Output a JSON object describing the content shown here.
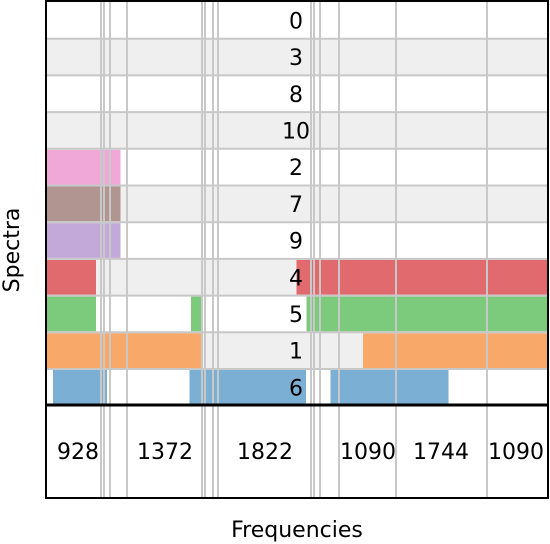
{
  "chart_data": {
    "type": "table",
    "xlabel": "Frequencies",
    "ylabel": "Spectra",
    "row_labels": [
      "0",
      "3",
      "8",
      "10",
      "2",
      "7",
      "9",
      "4",
      "5",
      "1",
      "6"
    ],
    "column_labels": [
      "928",
      "1372",
      "1822",
      "1090",
      "1744",
      "1090"
    ],
    "grid": true,
    "series": [
      {
        "row": "0",
        "color": null,
        "filled_spans": []
      },
      {
        "row": "3",
        "color": null,
        "filled_spans": []
      },
      {
        "row": "8",
        "color": null,
        "filled_spans": []
      },
      {
        "row": "10",
        "color": null,
        "filled_spans": []
      },
      {
        "row": "2",
        "color": "#f0a8d8",
        "filled_spans": [
          [
            0,
            0.147
          ]
        ]
      },
      {
        "row": "7",
        "color": "#b09590",
        "filled_spans": [
          [
            0,
            0.147
          ]
        ]
      },
      {
        "row": "9",
        "color": "#c3a8da",
        "filled_spans": [
          [
            0,
            0.147
          ]
        ]
      },
      {
        "row": "4",
        "color": "#e06a6e",
        "filled_spans": [
          [
            0,
            0.098
          ],
          [
            0.499,
            1
          ]
        ]
      },
      {
        "row": "5",
        "color": "#7ccb7c",
        "filled_spans": [
          [
            0,
            0.098
          ],
          [
            0.288,
            0.308
          ],
          [
            0.519,
            1
          ]
        ]
      },
      {
        "row": "1",
        "color": "#f8a868",
        "filled_spans": [
          [
            0,
            0.308
          ],
          [
            0.632,
            1
          ]
        ]
      },
      {
        "row": "6",
        "color": "#7bafd4",
        "filled_spans": [
          [
            0.012,
            0.12
          ],
          [
            0.285,
            0.518
          ],
          [
            0.567,
            0.803
          ]
        ]
      }
    ]
  }
}
